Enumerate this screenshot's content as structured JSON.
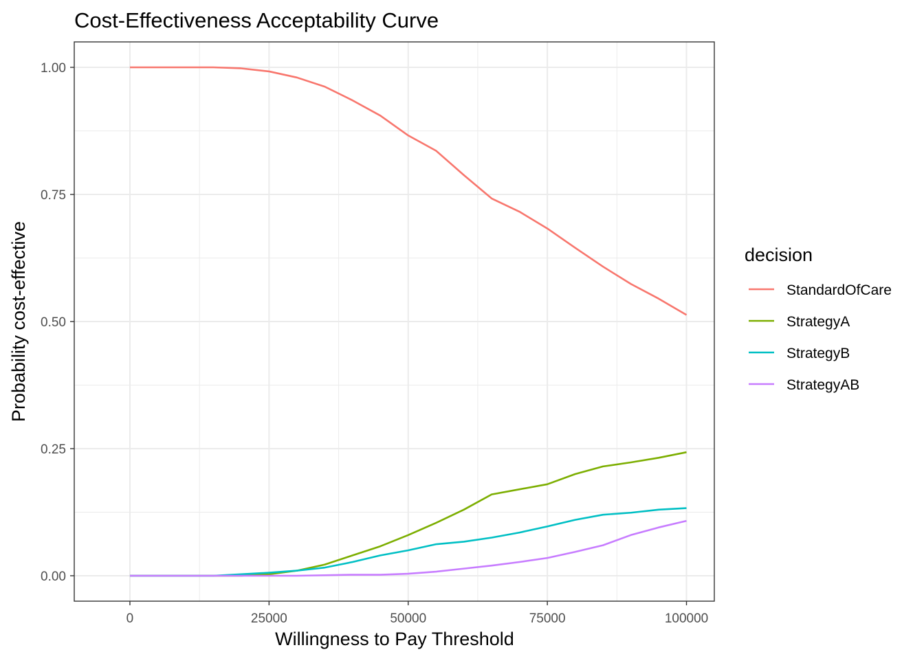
{
  "chart_data": {
    "type": "line",
    "title": "Cost-Effectiveness Acceptability Curve",
    "xlabel": "Willingness to Pay Threshold",
    "ylabel": "Probability cost-effective",
    "xlim": [
      -10000,
      105000
    ],
    "ylim": [
      -0.05,
      1.05
    ],
    "x_ticks": [
      0,
      25000,
      50000,
      75000,
      100000
    ],
    "x_tick_labels": [
      "0",
      "25000",
      "50000",
      "75000",
      "100000"
    ],
    "y_ticks": [
      0,
      0.25,
      0.5,
      0.75,
      1.0
    ],
    "y_tick_labels": [
      "0.00",
      "0.25",
      "0.50",
      "0.75",
      "1.00"
    ],
    "grid": true,
    "legend": {
      "title": "decision",
      "position": "right"
    },
    "x": [
      0,
      5000,
      10000,
      15000,
      20000,
      25000,
      30000,
      35000,
      40000,
      45000,
      50000,
      55000,
      60000,
      65000,
      70000,
      75000,
      80000,
      85000,
      90000,
      95000,
      100000
    ],
    "series": [
      {
        "name": "StandardOfCare",
        "color": "#F8766D",
        "values": [
          1.0,
          1.0,
          1.0,
          1.0,
          0.998,
          0.992,
          0.98,
          0.962,
          0.935,
          0.905,
          0.866,
          0.836,
          0.788,
          0.742,
          0.716,
          0.683,
          0.645,
          0.608,
          0.574,
          0.545,
          0.513
        ]
      },
      {
        "name": "StrategyA",
        "color": "#7CAE00",
        "values": [
          0.0,
          0.0,
          0.0,
          0.0,
          0.0,
          0.003,
          0.01,
          0.022,
          0.04,
          0.058,
          0.08,
          0.104,
          0.13,
          0.16,
          0.17,
          0.18,
          0.2,
          0.215,
          0.223,
          0.232,
          0.243
        ]
      },
      {
        "name": "StrategyB",
        "color": "#00BFC4",
        "values": [
          0.0,
          0.0,
          0.0,
          0.0,
          0.003,
          0.006,
          0.01,
          0.016,
          0.027,
          0.04,
          0.05,
          0.062,
          0.067,
          0.075,
          0.085,
          0.097,
          0.11,
          0.12,
          0.124,
          0.13,
          0.133
        ]
      },
      {
        "name": "StrategyAB",
        "color": "#C77CFF",
        "values": [
          0.0,
          0.0,
          0.0,
          0.0,
          0.0,
          0.0,
          0.0,
          0.001,
          0.002,
          0.002,
          0.004,
          0.008,
          0.014,
          0.02,
          0.027,
          0.035,
          0.047,
          0.06,
          0.08,
          0.095,
          0.108
        ]
      }
    ]
  }
}
